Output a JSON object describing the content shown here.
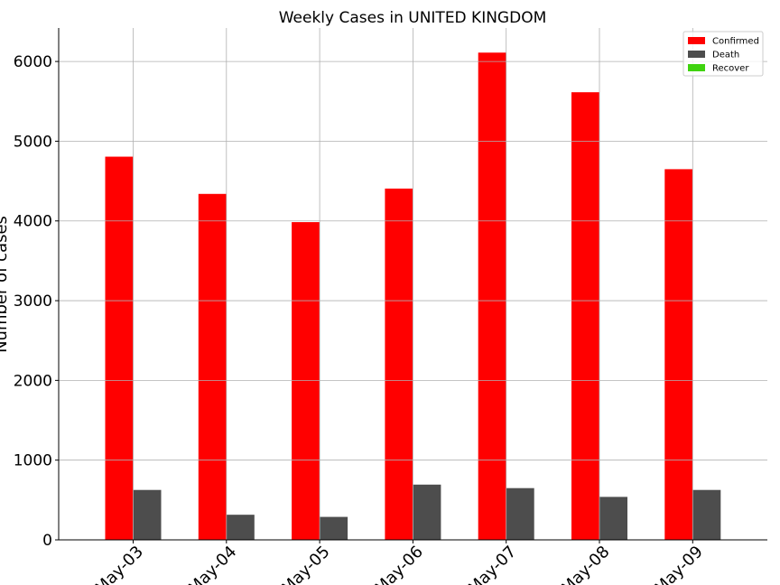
{
  "chart_data": {
    "type": "bar",
    "title": "Weekly Cases in UNITED KINGDOM",
    "xlabel": "",
    "ylabel": "Number of cases",
    "categories": [
      "May-03",
      "May-04",
      "May-05",
      "May-06",
      "May-07",
      "May-08",
      "May-09"
    ],
    "series": [
      {
        "name": "Confirmed",
        "color": "#ff0000",
        "values": [
          4806,
          4339,
          3985,
          4406,
          6111,
          5614,
          4649
        ]
      },
      {
        "name": "Death",
        "color": "#4d4d4d",
        "values": [
          626,
          315,
          288,
          693,
          649,
          539,
          626
        ]
      },
      {
        "name": "Recover",
        "color": "#3fd30f",
        "values": [
          0,
          0,
          0,
          0,
          0,
          0,
          0
        ]
      }
    ],
    "ylim": [
      0,
      6420
    ],
    "yticks": [
      0,
      1000,
      2000,
      3000,
      4000,
      5000,
      6000
    ],
    "grid": true,
    "legend_position": "top-right"
  }
}
